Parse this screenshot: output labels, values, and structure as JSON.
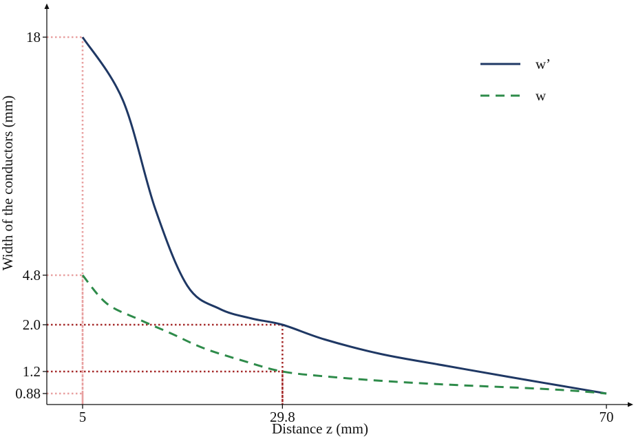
{
  "chart_data": {
    "type": "line",
    "xlabel": "Distance z (mm)",
    "ylabel": "Width of the conductors (mm)",
    "x_ticks": [
      "5",
      "29.8",
      "70"
    ],
    "y_ticks": [
      "0.88",
      "1.2",
      "2.0",
      "4.8",
      "18"
    ],
    "legend_position": "top-right",
    "grid": false,
    "series": [
      {
        "name": "w’",
        "style": "solid",
        "color": "#1f3864",
        "x": [
          5,
          10,
          14,
          18,
          22,
          26,
          29.8,
          35,
          42,
          50,
          58,
          64,
          70
        ],
        "y": [
          18,
          14.5,
          8.5,
          4.2,
          2.9,
          2.35,
          2.0,
          1.75,
          1.5,
          1.3,
          1.12,
          1.0,
          0.88
        ]
      },
      {
        "name": "w",
        "style": "dashed",
        "color": "#2e8b4a",
        "x": [
          5,
          8,
          12,
          16,
          20,
          25,
          29.8,
          36,
          44,
          52,
          60,
          66,
          70
        ],
        "y": [
          4.8,
          3.2,
          2.3,
          1.85,
          1.6,
          1.38,
          1.2,
          1.12,
          1.05,
          1.0,
          0.96,
          0.92,
          0.88
        ]
      }
    ],
    "guides": [
      {
        "x": 5,
        "y": 18,
        "color": "#e8a0a0"
      },
      {
        "x": 5,
        "y": 4.8,
        "color": "#e8a0a0"
      },
      {
        "x": 5,
        "y": 0.88,
        "color": "#e8a0a0"
      },
      {
        "x": 29.8,
        "y": 2.0,
        "color": "#a52a2a"
      },
      {
        "x": 29.8,
        "y": 1.2,
        "color": "#a52a2a"
      }
    ]
  }
}
